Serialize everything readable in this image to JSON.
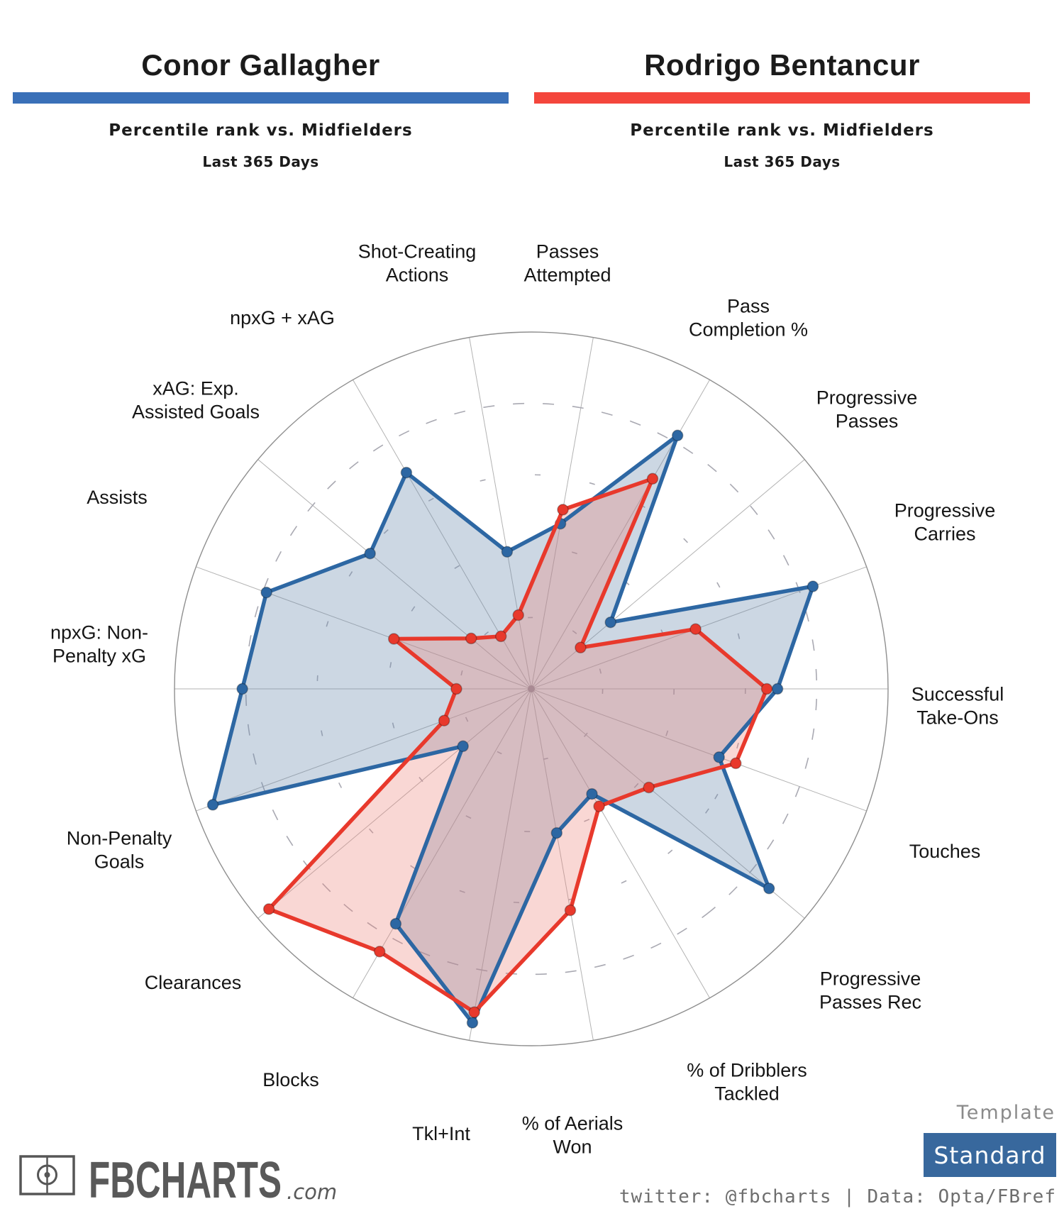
{
  "left_player": {
    "name": "Conor Gallagher",
    "subtitle": "Percentile rank vs. Midfielders",
    "period": "Last 365 Days",
    "accent_color": "#3a70b8"
  },
  "right_player": {
    "name": "Rodrigo Bentancur",
    "subtitle": "Percentile rank vs. Midfielders",
    "period": "Last 365 Days",
    "accent_color": "#f4463c"
  },
  "chart_data": {
    "type": "radar",
    "title": "Percentile rank vs. Midfielders — Last 365 Days",
    "scale": {
      "min": 0,
      "max": 100,
      "rings": [
        20,
        40,
        60,
        80,
        100
      ],
      "grid": "polar, dashed inner rings, solid outer ring"
    },
    "legend_position": "titles above chart",
    "axes": [
      {
        "label": "Passes Attempted",
        "lines": [
          "Passes",
          "Attempted"
        ]
      },
      {
        "label": "Pass Completion %",
        "lines": [
          "Pass",
          "Completion %"
        ]
      },
      {
        "label": "Progressive Passes",
        "lines": [
          "Progressive",
          "Passes"
        ]
      },
      {
        "label": "Progressive Carries",
        "lines": [
          "Progressive",
          "Carries"
        ]
      },
      {
        "label": "Successful Take-Ons",
        "lines": [
          "Successful",
          "Take-Ons"
        ]
      },
      {
        "label": "Touches",
        "lines": [
          "Touches"
        ]
      },
      {
        "label": "Progressive Passes Rec",
        "lines": [
          "Progressive",
          "Passes Rec"
        ]
      },
      {
        "label": "% of Dribblers Tackled",
        "lines": [
          "% of Dribblers",
          "Tackled"
        ]
      },
      {
        "label": "% of Aerials Won",
        "lines": [
          "% of Aerials",
          "Won"
        ]
      },
      {
        "label": "Tkl+Int",
        "lines": [
          "Tkl+Int"
        ]
      },
      {
        "label": "Blocks",
        "lines": [
          "Blocks"
        ]
      },
      {
        "label": "Clearances",
        "lines": [
          "Clearances"
        ]
      },
      {
        "label": "Non-Penalty Goals",
        "lines": [
          "Non-Penalty",
          "Goals"
        ]
      },
      {
        "label": "npxG: Non-Penalty xG",
        "lines": [
          "npxG: Non-",
          "Penalty xG"
        ]
      },
      {
        "label": "Assists",
        "lines": [
          "Assists"
        ]
      },
      {
        "label": "xAG: Exp. Assisted Goals",
        "lines": [
          "xAG: Exp.",
          "Assisted Goals"
        ]
      },
      {
        "label": "npxG + xAG",
        "lines": [
          "npxG + xAG"
        ]
      },
      {
        "label": "Shot-Creating Actions",
        "lines": [
          "Shot-Creating",
          "Actions"
        ]
      }
    ],
    "series": [
      {
        "name": "Conor Gallagher",
        "line_color": "#2d67a3",
        "fill_color": "rgba(109,140,175,0.35)",
        "values": [
          47,
          82,
          29,
          84,
          69,
          56,
          87,
          34,
          41,
          95,
          76,
          25,
          95,
          81,
          79,
          59,
          70,
          39
        ]
      },
      {
        "name": "Rodrigo Bentancur",
        "line_color": "#e8392c",
        "fill_color": "rgba(235,130,120,0.32)",
        "values": [
          51,
          68,
          18,
          49,
          66,
          61,
          43,
          38,
          63,
          92,
          85,
          96,
          26,
          21,
          41,
          22,
          17,
          21
        ]
      }
    ]
  },
  "footer": {
    "logo_text": "FBCHARTS",
    "logo_suffix": ".com",
    "template_label": "Template",
    "template_value": "Standard",
    "credit": "twitter: @fbcharts | Data: Opta/FBref"
  }
}
